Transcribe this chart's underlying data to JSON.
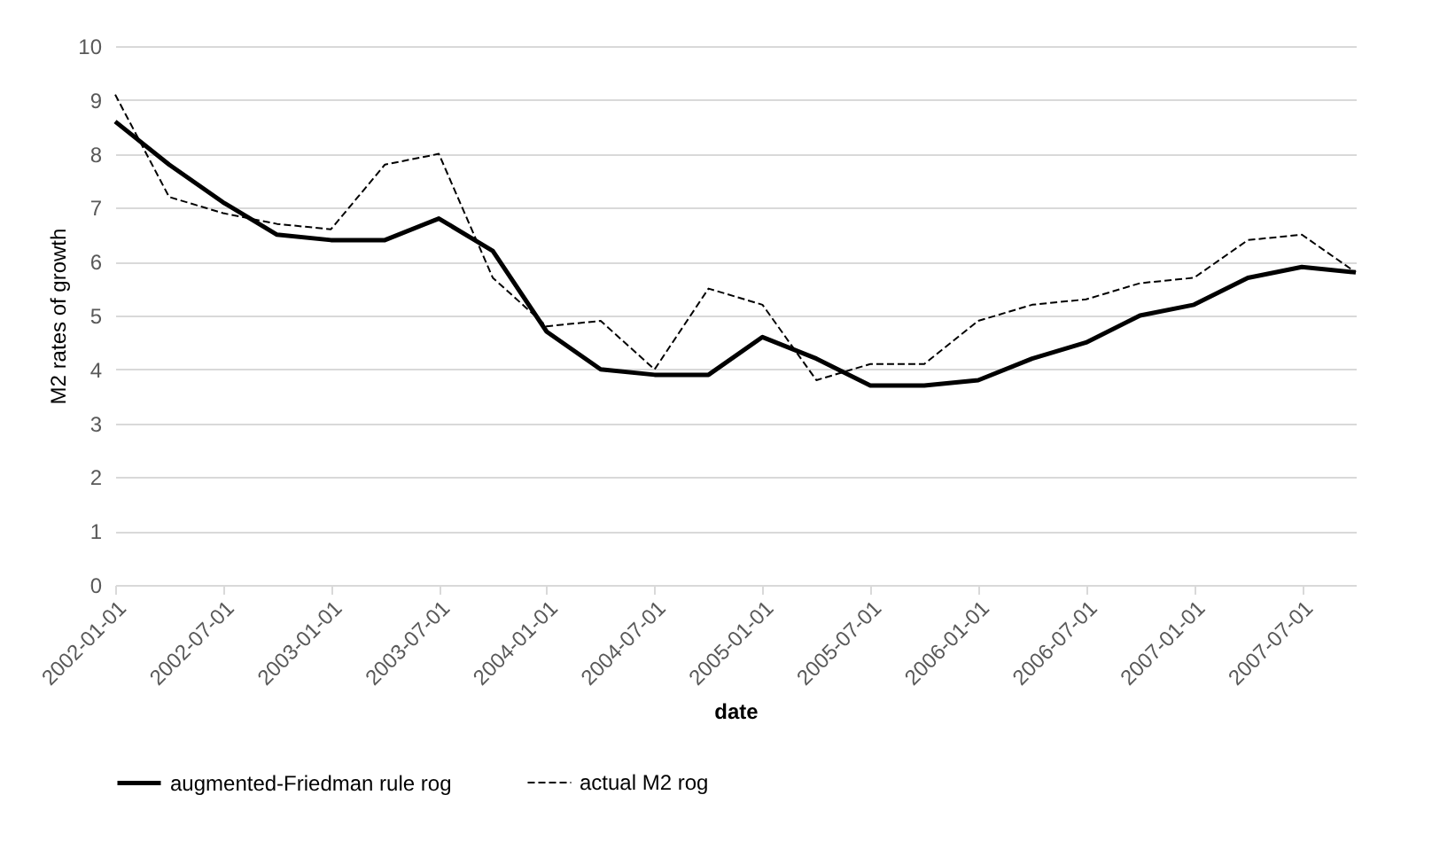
{
  "chart_data": {
    "type": "line",
    "xlabel": "date",
    "ylabel": "M2 rates of growth",
    "categories": [
      "2002-01-01",
      null,
      "2002-07-01",
      null,
      "2003-01-01",
      null,
      "2003-07-01",
      null,
      "2004-01-01",
      null,
      "2004-07-01",
      null,
      "2005-01-01",
      null,
      "2005-07-01",
      null,
      "2006-01-01",
      null,
      "2006-07-01",
      null,
      "2007-01-01",
      null,
      "2007-07-01",
      null
    ],
    "series": [
      {
        "name": "augmented-Friedman rule rog",
        "color": "#000000",
        "line_style": "solid",
        "values": [
          8.6,
          7.8,
          7.1,
          6.5,
          6.4,
          6.4,
          6.8,
          6.2,
          4.7,
          4.0,
          3.9,
          3.9,
          4.6,
          4.2,
          3.7,
          3.7,
          3.8,
          4.2,
          4.5,
          5.0,
          5.2,
          5.7,
          5.9,
          5.8
        ]
      },
      {
        "name": "actual M2 rog",
        "color": "#000000",
        "line_style": "dashed",
        "values": [
          9.1,
          7.2,
          6.9,
          6.7,
          6.6,
          7.8,
          8.0,
          5.7,
          4.8,
          4.9,
          4.0,
          5.5,
          5.2,
          3.8,
          4.1,
          4.1,
          4.9,
          5.2,
          5.3,
          5.6,
          5.7,
          6.4,
          6.5,
          5.8
        ]
      }
    ],
    "ylim": [
      0,
      10
    ],
    "yticks": [
      0,
      1,
      2,
      3,
      4,
      5,
      6,
      7,
      8,
      9,
      10
    ],
    "grid": "y",
    "legend": "bottom"
  }
}
